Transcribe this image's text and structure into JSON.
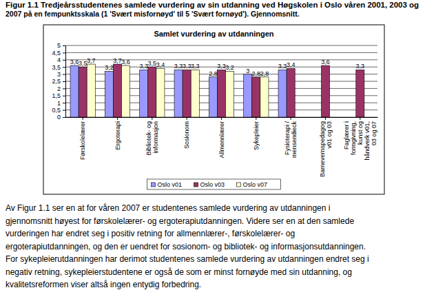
{
  "caption": [
    "Figur 1.1 Tredjeårsstudentenes samlede vurdering av sin utdanning ved Høgskolen i Oslo våren 2001, 2003 og",
    "2007 på en fempunktsskala (1 'Svært misfornøyd' til 5 'Svært fornøyd'). Gjennomsnitt."
  ],
  "chart_data": {
    "type": "bar",
    "title": "Samlet vurdering av utdanningen",
    "categories": [
      "Førskolelærer",
      "Ergoterapi",
      "Bibliotek- og informasjon",
      "Sosionom",
      "Allmennlærer",
      "Sykepleier",
      "Fysioterapi / mensendieck",
      "Barnevernspedagog v01 og 03",
      "Faglærer i formgivning, kunst og håndverk v01, 03 og 07"
    ],
    "series": [
      {
        "name": "Oslo v01",
        "color": "#9999ff",
        "values": [
          3.6,
          3.2,
          3.3,
          3.3,
          2.8,
          3.0,
          3.3,
          null,
          null
        ],
        "value_labels": [
          "3,6",
          "3,2",
          "3,3",
          "3,3",
          "2,8",
          "3",
          "3,3",
          null,
          null
        ]
      },
      {
        "name": "Oslo v03",
        "color": "#993366",
        "values": [
          3.5,
          3.7,
          3.5,
          3.3,
          3.3,
          2.8,
          3.4,
          3.6,
          3.3
        ],
        "value_labels": [
          "3,5",
          "3,7",
          "3,5",
          "3,3",
          "3,3",
          "2,8",
          "3,4",
          "3,6",
          "3,3"
        ]
      },
      {
        "name": "Oslo v07",
        "color": "#ffffcc",
        "values": [
          3.7,
          3.6,
          3.4,
          3.3,
          3.2,
          2.8,
          null,
          null,
          null
        ],
        "value_labels": [
          "3,7",
          "3,6",
          "3,4",
          "3,3",
          "3,2",
          "2,8",
          null,
          null,
          null
        ]
      }
    ],
    "ylim": [
      0,
      5
    ],
    "yticks": [
      0,
      {
        "value": 0.5,
        "label": "0,5"
      },
      1,
      {
        "value": 1.5,
        "label": "1,5"
      },
      2,
      {
        "value": 2.5,
        "label": "2,5"
      },
      3,
      {
        "value": 3.5,
        "label": "3,5"
      },
      4,
      {
        "value": 4.5,
        "label": "4,5"
      },
      5
    ],
    "grid": true,
    "data_labels": true,
    "legend": "bottom"
  },
  "paragraph": [
    "Av Figur 1.1 ser en at for våren 2007 er studentenes samlede vurdering av utdanningen i",
    "gjennomsnitt høyest for førskolelærer- og ergoterapiutdanningen. Videre ser en at den samlede",
    "vurderingen har endret seg i positiv retning for allmennlærer-, førskolelærer- og",
    "ergoterapiutdanningen, og den er uendret for sosionom- og bibliotek- og informasjonsutdanningen.",
    "For sykepleierutdanningen har derimot studentenes samlede vurdering av utdanningen endret seg i",
    "negativ retning, sykepleierstudentene er også de som er minst fornøyde med sin utdanning, og",
    "kvalitetsreformen viser altså ingen entydig forbedring."
  ]
}
